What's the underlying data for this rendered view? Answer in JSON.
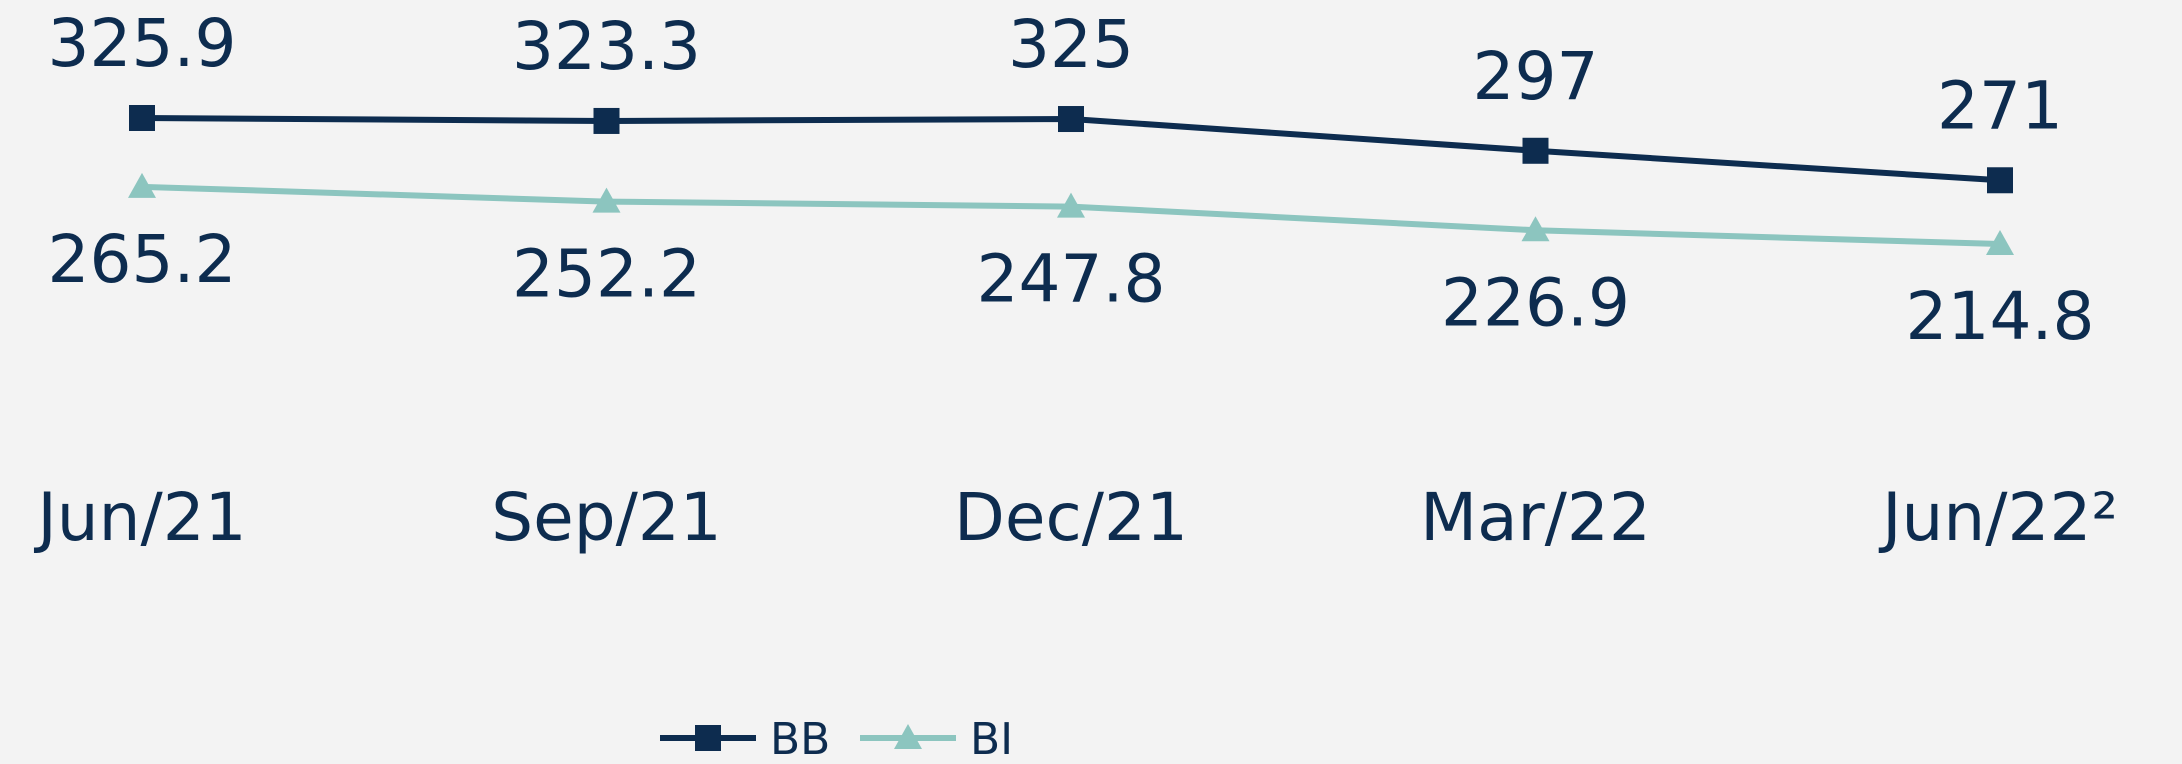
{
  "chart_data": {
    "type": "line",
    "categories": [
      "Jun/21",
      "Sep/21",
      "Dec/21",
      "Mar/22",
      "Jun/22²"
    ],
    "series": [
      {
        "name": "BB",
        "color": "#0d2c4f",
        "marker": "square",
        "values": [
          325.9,
          323.3,
          325.0,
          297.0,
          271.0
        ]
      },
      {
        "name": "BI",
        "color": "#8cc5bf",
        "marker": "triangle",
        "values": [
          265.2,
          252.2,
          247.8,
          226.9,
          214.8
        ]
      }
    ],
    "legend": "bottom"
  }
}
